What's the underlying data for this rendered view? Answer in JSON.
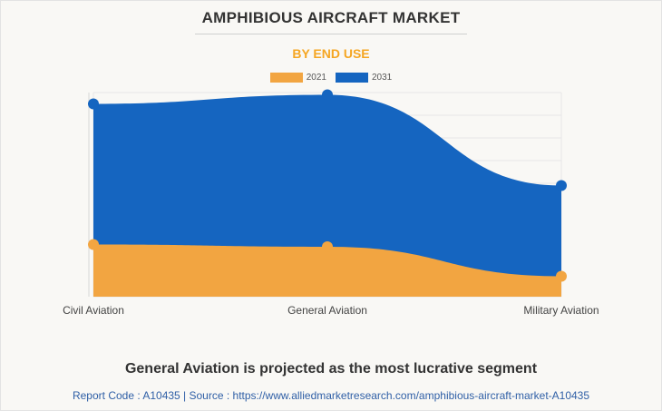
{
  "colors": {
    "series_2021": "#f2a541",
    "series_2031": "#1565c0",
    "accent": "#f5a623",
    "grid": "#e6e6e6"
  },
  "chart_data": {
    "type": "area",
    "title": "AMPHIBIOUS AIRCRAFT MARKET",
    "subtitle": "BY END USE",
    "categories": [
      "Civil Aviation",
      "General Aviation",
      "Military Aviation"
    ],
    "series": [
      {
        "name": "2021",
        "values": [
          2.3,
          2.2,
          0.9
        ]
      },
      {
        "name": "2031",
        "values": [
          8.5,
          8.9,
          4.9
        ]
      }
    ],
    "ylim": [
      0,
      9
    ],
    "grid": true,
    "legend": "top"
  },
  "insight": "General Aviation is projected as the most lucrative segment",
  "footer": "Report Code : A10435  |  Source : https://www.alliedmarketresearch.com/amphibious-aircraft-market-A10435"
}
